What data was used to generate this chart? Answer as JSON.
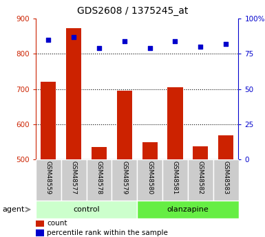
{
  "title": "GDS2608 / 1375245_at",
  "samples": [
    "GSM48559",
    "GSM48577",
    "GSM48578",
    "GSM48579",
    "GSM48580",
    "GSM48581",
    "GSM48582",
    "GSM48583"
  ],
  "counts": [
    720,
    872,
    535,
    695,
    549,
    704,
    537,
    568
  ],
  "percentile_ranks": [
    85,
    87,
    79,
    84,
    79,
    84,
    80,
    82
  ],
  "ylim_left": [
    500,
    900
  ],
  "ylim_right": [
    0,
    100
  ],
  "yticks_left": [
    500,
    600,
    700,
    800,
    900
  ],
  "yticks_right": [
    0,
    25,
    50,
    75,
    100
  ],
  "bar_color": "#cc2200",
  "dot_color": "#0000cc",
  "group_colors_control": "#ccffcc",
  "group_colors_olanzapine": "#66ee44",
  "tick_bg_color": "#cccccc",
  "legend_count_color": "#cc2200",
  "legend_dot_color": "#0000cc",
  "agent_label": "agent",
  "legend_count_label": "count",
  "legend_percentile_label": "percentile rank within the sample",
  "control_label": "control",
  "olanzapine_label": "olanzapine"
}
